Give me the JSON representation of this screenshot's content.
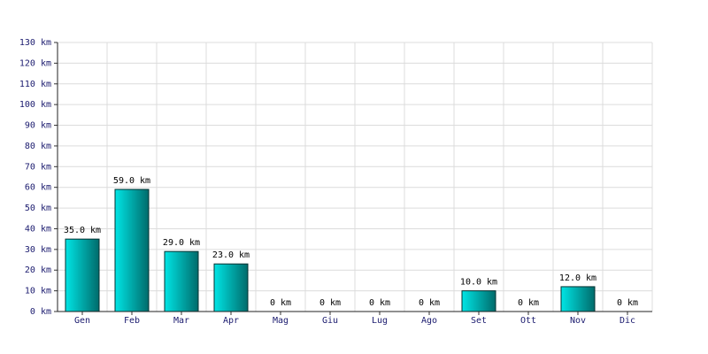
{
  "chart_data": {
    "type": "bar",
    "categories": [
      "Gen",
      "Feb",
      "Mar",
      "Apr",
      "Mag",
      "Giu",
      "Lug",
      "Ago",
      "Set",
      "Ott",
      "Nov",
      "Dic"
    ],
    "values": [
      35,
      59,
      29,
      23,
      0,
      0,
      0,
      0,
      10,
      0,
      12,
      0
    ],
    "value_labels": [
      "35.0 km",
      "59.0 km",
      "29.0 km",
      "23.0 km",
      "0 km",
      "0 km",
      "0 km",
      "0 km",
      "10.0 km",
      "0 km",
      "12.0 km",
      "0 km"
    ],
    "color": "#00e5e5",
    "ylim": [
      0,
      130
    ],
    "yticks": [
      {
        "value": 0,
        "label": "0 km"
      },
      {
        "value": 10,
        "label": "10 km"
      },
      {
        "value": 20,
        "label": "20 km"
      },
      {
        "value": 30,
        "label": "30 km"
      },
      {
        "value": 40,
        "label": "40 km"
      },
      {
        "value": 50,
        "label": "50 km"
      },
      {
        "value": 60,
        "label": "60 km"
      },
      {
        "value": 70,
        "label": "70 km"
      },
      {
        "value": 80,
        "label": "80 km"
      },
      {
        "value": 90,
        "label": "90 km"
      },
      {
        "value": 100,
        "label": "100 km"
      },
      {
        "value": 110,
        "label": "110 km"
      },
      {
        "value": 120,
        "label": "120 km"
      },
      {
        "value": 130,
        "label": "130 km"
      }
    ],
    "grid": true
  }
}
